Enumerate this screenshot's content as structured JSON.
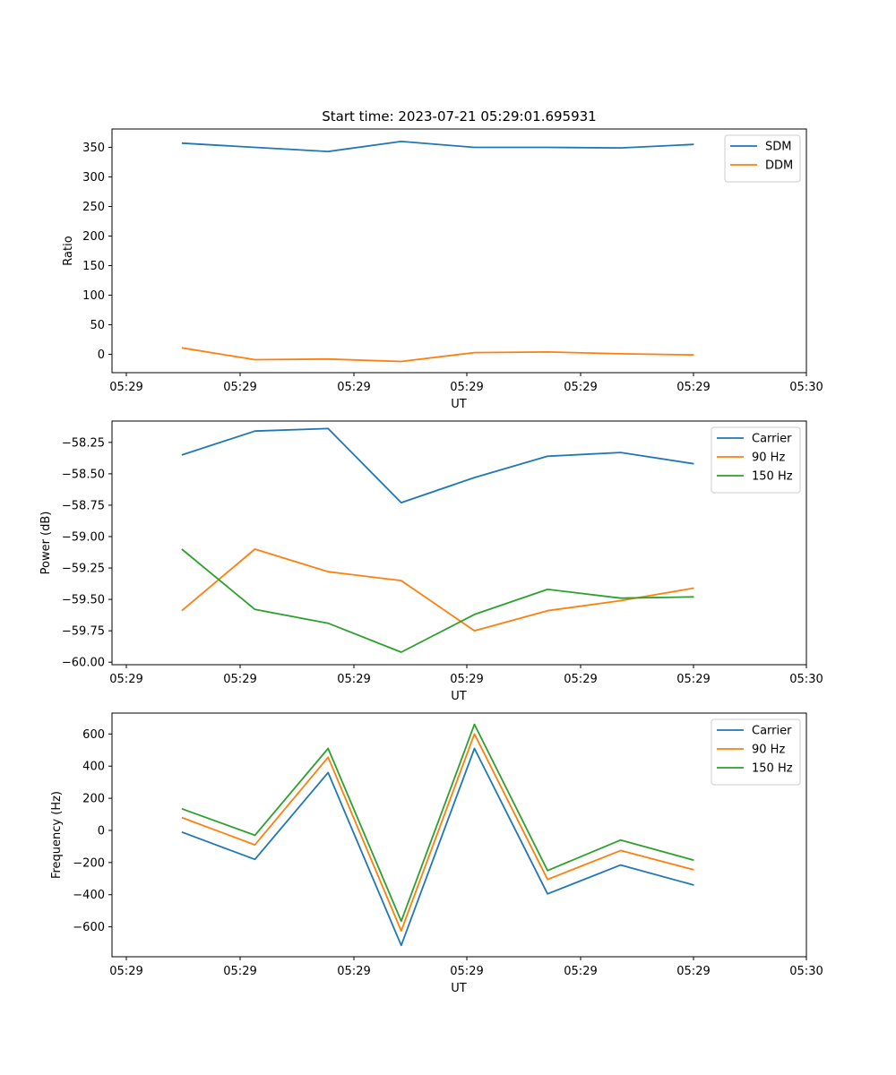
{
  "title": "Start time: 2023-07-21 05:29:01.695931",
  "colors": {
    "blue": "#1f77b4",
    "orange": "#ff7f0e",
    "green": "#2ca02c",
    "axis": "#000000",
    "legend_border": "#cccccc"
  },
  "chart_data": [
    {
      "type": "line",
      "title": "Start time: 2023-07-21 05:29:01.695931",
      "xlabel": "UT",
      "ylabel": "Ratio",
      "xtick_labels": [
        "05:29",
        "05:29",
        "05:29",
        "05:29",
        "05:29",
        "05:29",
        "05:30"
      ],
      "x": [
        0.5,
        1.15,
        1.8,
        2.45,
        3.1,
        3.75,
        4.4,
        5.05
      ],
      "xlim": [
        -0.12,
        6.05
      ],
      "ylim": [
        -31,
        381
      ],
      "yticks": [
        0,
        50,
        100,
        150,
        200,
        250,
        300,
        350
      ],
      "ytick_labels": [
        "0",
        "50",
        "100",
        "150",
        "200",
        "250",
        "300",
        "350"
      ],
      "legend": "upper right",
      "series": [
        {
          "name": "SDM",
          "color": "#1f77b4",
          "values": [
            357,
            350,
            343,
            360,
            350,
            350,
            349,
            355
          ]
        },
        {
          "name": "DDM",
          "color": "#ff7f0e",
          "values": [
            11,
            -9,
            -8,
            -12,
            3,
            4,
            1,
            -1
          ]
        }
      ]
    },
    {
      "type": "line",
      "title": "",
      "xlabel": "UT",
      "ylabel": "Power (dB)",
      "xtick_labels": [
        "05:29",
        "05:29",
        "05:29",
        "05:29",
        "05:29",
        "05:29",
        "05:30"
      ],
      "x": [
        0.5,
        1.15,
        1.8,
        2.45,
        3.1,
        3.75,
        4.4,
        5.05
      ],
      "xlim": [
        -0.12,
        6.05
      ],
      "ylim": [
        -60.02,
        -58.08
      ],
      "yticks": [
        -60.0,
        -59.75,
        -59.5,
        -59.25,
        -59.0,
        -58.75,
        -58.5,
        -58.25
      ],
      "ytick_labels": [
        "−60.00",
        "−59.75",
        "−59.50",
        "−59.25",
        "−59.00",
        "−58.75",
        "−58.50",
        "−58.25"
      ],
      "legend": "upper right",
      "series": [
        {
          "name": "Carrier",
          "color": "#1f77b4",
          "values": [
            -58.35,
            -58.16,
            -58.14,
            -58.73,
            -58.53,
            -58.36,
            -58.33,
            -58.42
          ]
        },
        {
          "name": "90 Hz",
          "color": "#ff7f0e",
          "values": [
            -59.59,
            -59.1,
            -59.28,
            -59.35,
            -59.75,
            -59.59,
            -59.51,
            -59.41
          ]
        },
        {
          "name": "150 Hz",
          "color": "#2ca02c",
          "values": [
            -59.1,
            -59.58,
            -59.69,
            -59.92,
            -59.62,
            -59.42,
            -59.49,
            -59.48
          ]
        }
      ]
    },
    {
      "type": "line",
      "title": "",
      "xlabel": "UT",
      "ylabel": "Frequency (Hz)",
      "xtick_labels": [
        "05:29",
        "05:29",
        "05:29",
        "05:29",
        "05:29",
        "05:29",
        "05:30"
      ],
      "x": [
        0.5,
        1.15,
        1.8,
        2.45,
        3.1,
        3.75,
        4.4,
        5.05
      ],
      "xlim": [
        -0.12,
        6.05
      ],
      "ylim": [
        -786,
        730
      ],
      "yticks": [
        -600,
        -400,
        -200,
        0,
        200,
        400,
        600
      ],
      "ytick_labels": [
        "−600",
        "−400",
        "−200",
        "0",
        "200",
        "400",
        "600"
      ],
      "legend": "upper right",
      "series": [
        {
          "name": "Carrier",
          "color": "#1f77b4",
          "values": [
            -10,
            -180,
            360,
            -715,
            510,
            -395,
            -215,
            -340
          ]
        },
        {
          "name": "90 Hz",
          "color": "#ff7f0e",
          "values": [
            80,
            -90,
            455,
            -625,
            600,
            -305,
            -125,
            -245
          ]
        },
        {
          "name": "150 Hz",
          "color": "#2ca02c",
          "values": [
            135,
            -30,
            510,
            -565,
            660,
            -250,
            -60,
            -185
          ]
        }
      ]
    }
  ]
}
